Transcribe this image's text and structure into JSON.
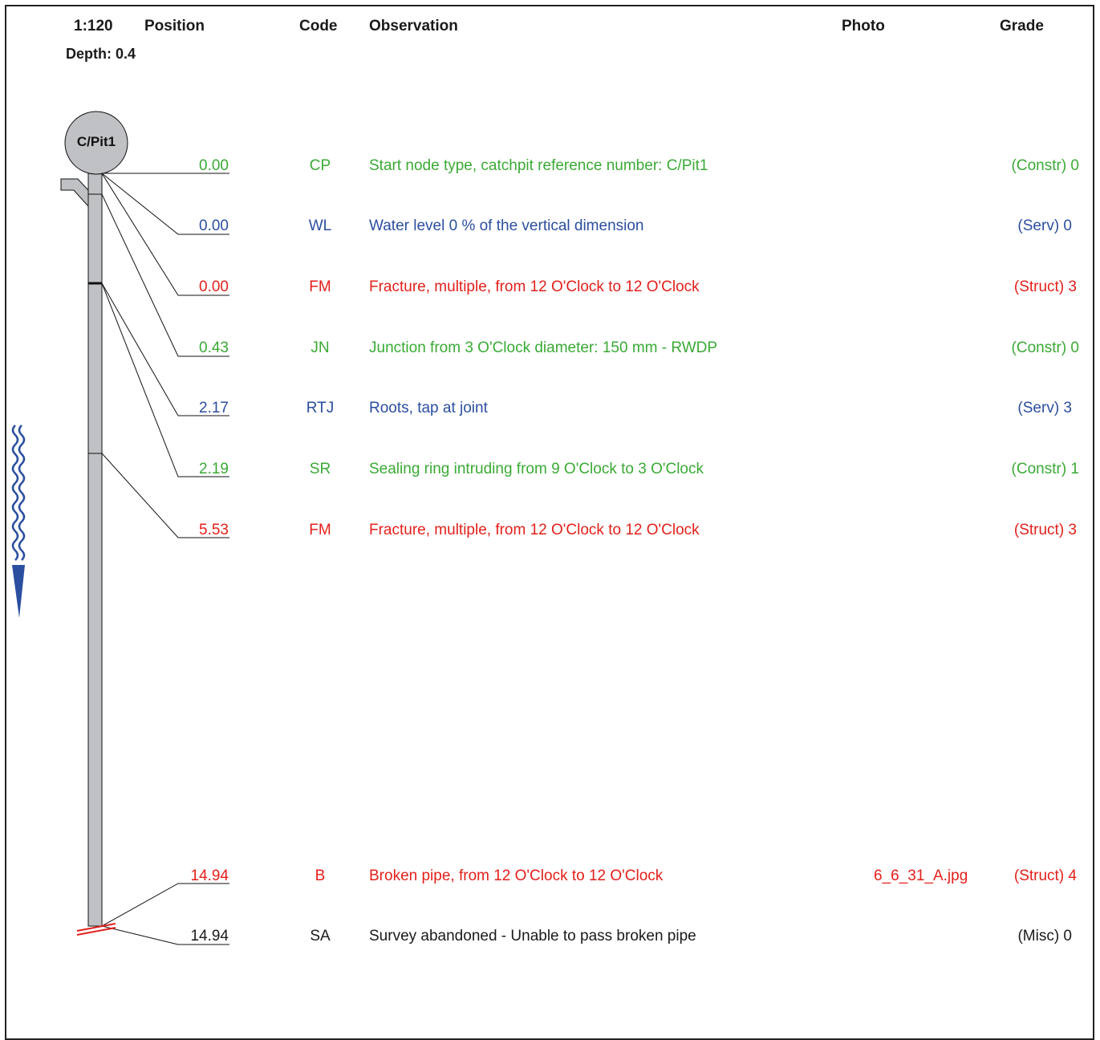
{
  "header": {
    "scale": "1:120",
    "position": "Position",
    "code": "Code",
    "observation": "Observation",
    "photo": "Photo",
    "grade": "Grade",
    "depth": "Depth: 0.4"
  },
  "start_node": {
    "label": "C/Pit1"
  },
  "colors": {
    "Constr": "#3aaa35",
    "Serv": "#2b4ea0",
    "Struct": "#e3201b",
    "Misc": "#1a1a1a",
    "pipe_fill": "#c0c1c4",
    "flow_wave": "#2b4ea0"
  },
  "observations": [
    {
      "position": "0.00",
      "code": "CP",
      "observation": "Start node type, catchpit reference number: C/Pit1",
      "photo": "",
      "grade": "(Constr) 0",
      "category": "Constr"
    },
    {
      "position": "0.00",
      "code": "WL",
      "observation": "Water level 0 % of the vertical dimension",
      "photo": "",
      "grade": "(Serv) 0",
      "category": "Serv"
    },
    {
      "position": "0.00",
      "code": "FM",
      "observation": "Fracture, multiple, from 12 O'Clock to 12 O'Clock",
      "photo": "",
      "grade": "(Struct) 3",
      "category": "Struct"
    },
    {
      "position": "0.43",
      "code": "JN",
      "observation": "Junction from 3 O'Clock  diameter: 150 mm - RWDP",
      "photo": "",
      "grade": "(Constr) 0",
      "category": "Constr"
    },
    {
      "position": "2.17",
      "code": "RTJ",
      "observation": "Roots, tap at joint",
      "photo": "",
      "grade": "(Serv) 3",
      "category": "Serv"
    },
    {
      "position": "2.19",
      "code": "SR",
      "observation": "Sealing ring intruding from 9 O'Clock to 3 O'Clock",
      "photo": "",
      "grade": "(Constr) 1",
      "category": "Constr"
    },
    {
      "position": "5.53",
      "code": "FM",
      "observation": "Fracture, multiple, from 12 O'Clock to 12 O'Clock",
      "photo": "",
      "grade": "(Struct) 3",
      "category": "Struct"
    },
    {
      "position": "14.94",
      "code": "B",
      "observation": "Broken pipe, from 12 O'Clock to 12 O'Clock",
      "photo": "6_6_31_A.jpg",
      "grade": "(Struct) 4",
      "category": "Struct"
    },
    {
      "position": "14.94",
      "code": "SA",
      "observation": "Survey abandoned - Unable to pass broken pipe",
      "photo": "",
      "grade": "(Misc) 0",
      "category": "Misc"
    }
  ]
}
